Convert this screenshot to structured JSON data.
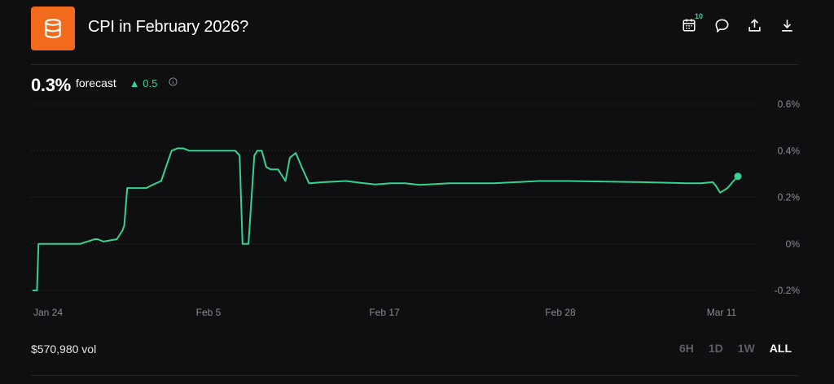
{
  "header": {
    "title": "CPI in February 2026?",
    "logo_icon": "database-icon",
    "calendar_badge": "10",
    "actions": [
      "calendar-icon",
      "comment-icon",
      "share-icon",
      "download-icon"
    ]
  },
  "summary": {
    "value": "0.3%",
    "label": "forecast",
    "change": "0.5",
    "change_direction": "up",
    "change_color": "#35d38e"
  },
  "footer": {
    "volume": "$570,980 vol",
    "ranges": [
      "6H",
      "1D",
      "1W",
      "ALL"
    ],
    "active_range": "ALL"
  },
  "chart_data": {
    "type": "line",
    "title": "",
    "xlabel": "",
    "ylabel": "",
    "x_ticks": [
      "Jan 24",
      "Feb 5",
      "Feb 17",
      "Feb 28",
      "Mar 11"
    ],
    "y_ticks": [
      "0.6%",
      "0.4%",
      "0.2%",
      "0%",
      "-0.2%"
    ],
    "ylim": [
      -0.2,
      0.6
    ],
    "grid": true,
    "line_color": "#35d38e",
    "series": [
      {
        "x": [
          23.8,
          24.1,
          24.2,
          24.5,
          27.0,
          28.0,
          28.2,
          28.6,
          29.5,
          29.9,
          30.0,
          30.2,
          31.0,
          31.5,
          31.8,
          32.5,
          33.2,
          33.6,
          33.7,
          34.0,
          34.4,
          36.0,
          37.5,
          37.8,
          38.0,
          38.4,
          38.8,
          39.0,
          39.3,
          39.6,
          39.9,
          40.4,
          40.6,
          40.9,
          41.2,
          41.6,
          42.0,
          42.5,
          43.5,
          45.0,
          46.0,
          47.0,
          48.0,
          49.0,
          50.0,
          52.0,
          55.0,
          58.0,
          60.0,
          65.0,
          67.0,
          68.0,
          69.0,
          69.8,
          70.0,
          70.3,
          70.8,
          71.2,
          71.5
        ],
        "y": [
          -0.2,
          -0.2,
          0.0,
          0.0,
          0.0,
          0.02,
          0.02,
          0.01,
          0.02,
          0.06,
          0.08,
          0.24,
          0.24,
          0.24,
          0.25,
          0.27,
          0.4,
          0.41,
          0.41,
          0.41,
          0.4,
          0.4,
          0.4,
          0.38,
          0.0,
          0.0,
          0.38,
          0.4,
          0.4,
          0.33,
          0.32,
          0.32,
          0.3,
          0.27,
          0.37,
          0.39,
          0.33,
          0.26,
          0.265,
          0.27,
          0.262,
          0.255,
          0.26,
          0.26,
          0.253,
          0.26,
          0.26,
          0.27,
          0.27,
          0.265,
          0.262,
          0.26,
          0.26,
          0.265,
          0.25,
          0.22,
          0.24,
          0.27,
          0.29
        ]
      }
    ]
  }
}
